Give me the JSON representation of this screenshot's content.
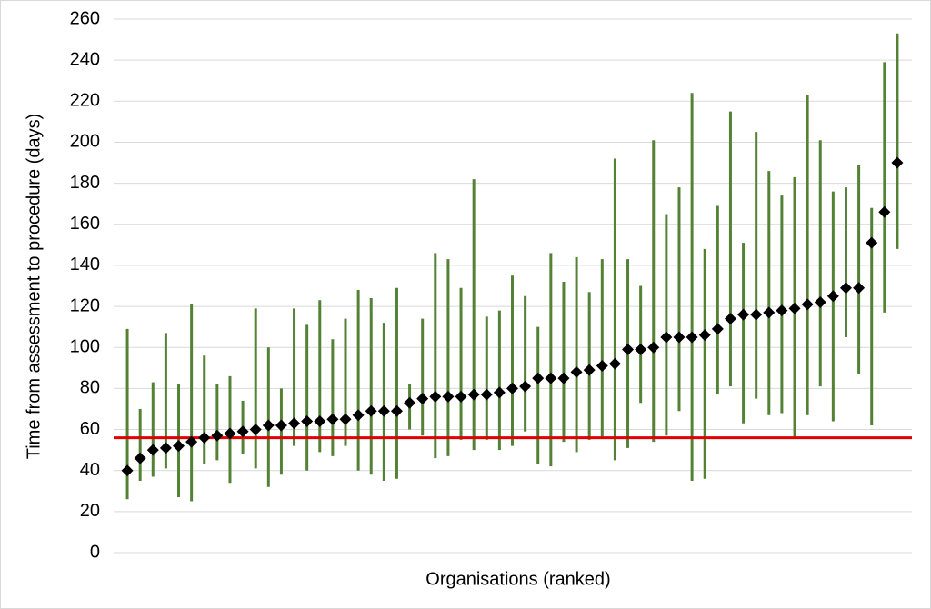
{
  "chart_data": {
    "type": "dot-range",
    "y_label": "Time from assessment to procedure (days)",
    "x_label": "Organisations (ranked)",
    "categories": [
      null,
      null,
      null,
      null,
      null,
      null,
      null,
      null,
      null,
      null,
      null,
      null,
      null,
      null,
      null,
      null,
      null,
      null,
      null,
      null,
      null,
      null,
      null,
      null,
      null,
      null,
      null,
      null,
      null,
      null,
      null,
      null,
      null,
      null,
      null,
      null,
      null,
      null,
      null,
      null,
      null,
      null,
      null,
      null,
      null,
      null,
      null,
      null,
      null,
      null,
      null,
      null,
      null,
      null,
      null,
      null,
      null,
      null,
      null,
      null,
      null
    ],
    "values": [
      40,
      46,
      50,
      51,
      52,
      54,
      56,
      57,
      58,
      59,
      60,
      62,
      62,
      63,
      64,
      64,
      65,
      65,
      67,
      69,
      69,
      69,
      73,
      75,
      76,
      76,
      76,
      77,
      77,
      78,
      80,
      81,
      85,
      85,
      85,
      88,
      89,
      91,
      92,
      99,
      99,
      100,
      105,
      105,
      105,
      106,
      109,
      114,
      116,
      116,
      117,
      118,
      119,
      121,
      122,
      125,
      129,
      129,
      151,
      166,
      190
    ],
    "lows": [
      26,
      35,
      37,
      41,
      27,
      25,
      43,
      45,
      34,
      48,
      41,
      32,
      38,
      52,
      40,
      49,
      47,
      52,
      40,
      38,
      35,
      36,
      60,
      57,
      46,
      47,
      55,
      50,
      55,
      50,
      52,
      59,
      43,
      42,
      54,
      49,
      55,
      56,
      45,
      51,
      73,
      54,
      57,
      69,
      35,
      36,
      77,
      81,
      63,
      75,
      67,
      68,
      56,
      67,
      81,
      64,
      105,
      87,
      62,
      117,
      148
    ],
    "highs": [
      109,
      70,
      83,
      107,
      82,
      121,
      96,
      82,
      86,
      74,
      119,
      100,
      80,
      119,
      111,
      123,
      104,
      114,
      128,
      124,
      112,
      129,
      82,
      114,
      146,
      143,
      129,
      182,
      115,
      118,
      135,
      125,
      110,
      146,
      132,
      144,
      127,
      143,
      192,
      143,
      130,
      201,
      165,
      178,
      224,
      148,
      169,
      215,
      151,
      205,
      186,
      174,
      183,
      223,
      201,
      176,
      178,
      189,
      168,
      239,
      253
    ],
    "color": "#000000",
    "range_color": "#548235",
    "reference_line": {
      "value": 56,
      "color": "#e00000"
    },
    "ylim": [
      0,
      260
    ],
    "yticks": [
      0,
      20,
      40,
      60,
      80,
      100,
      120,
      140,
      160,
      180,
      200,
      220,
      240,
      260
    ],
    "grid": true
  }
}
